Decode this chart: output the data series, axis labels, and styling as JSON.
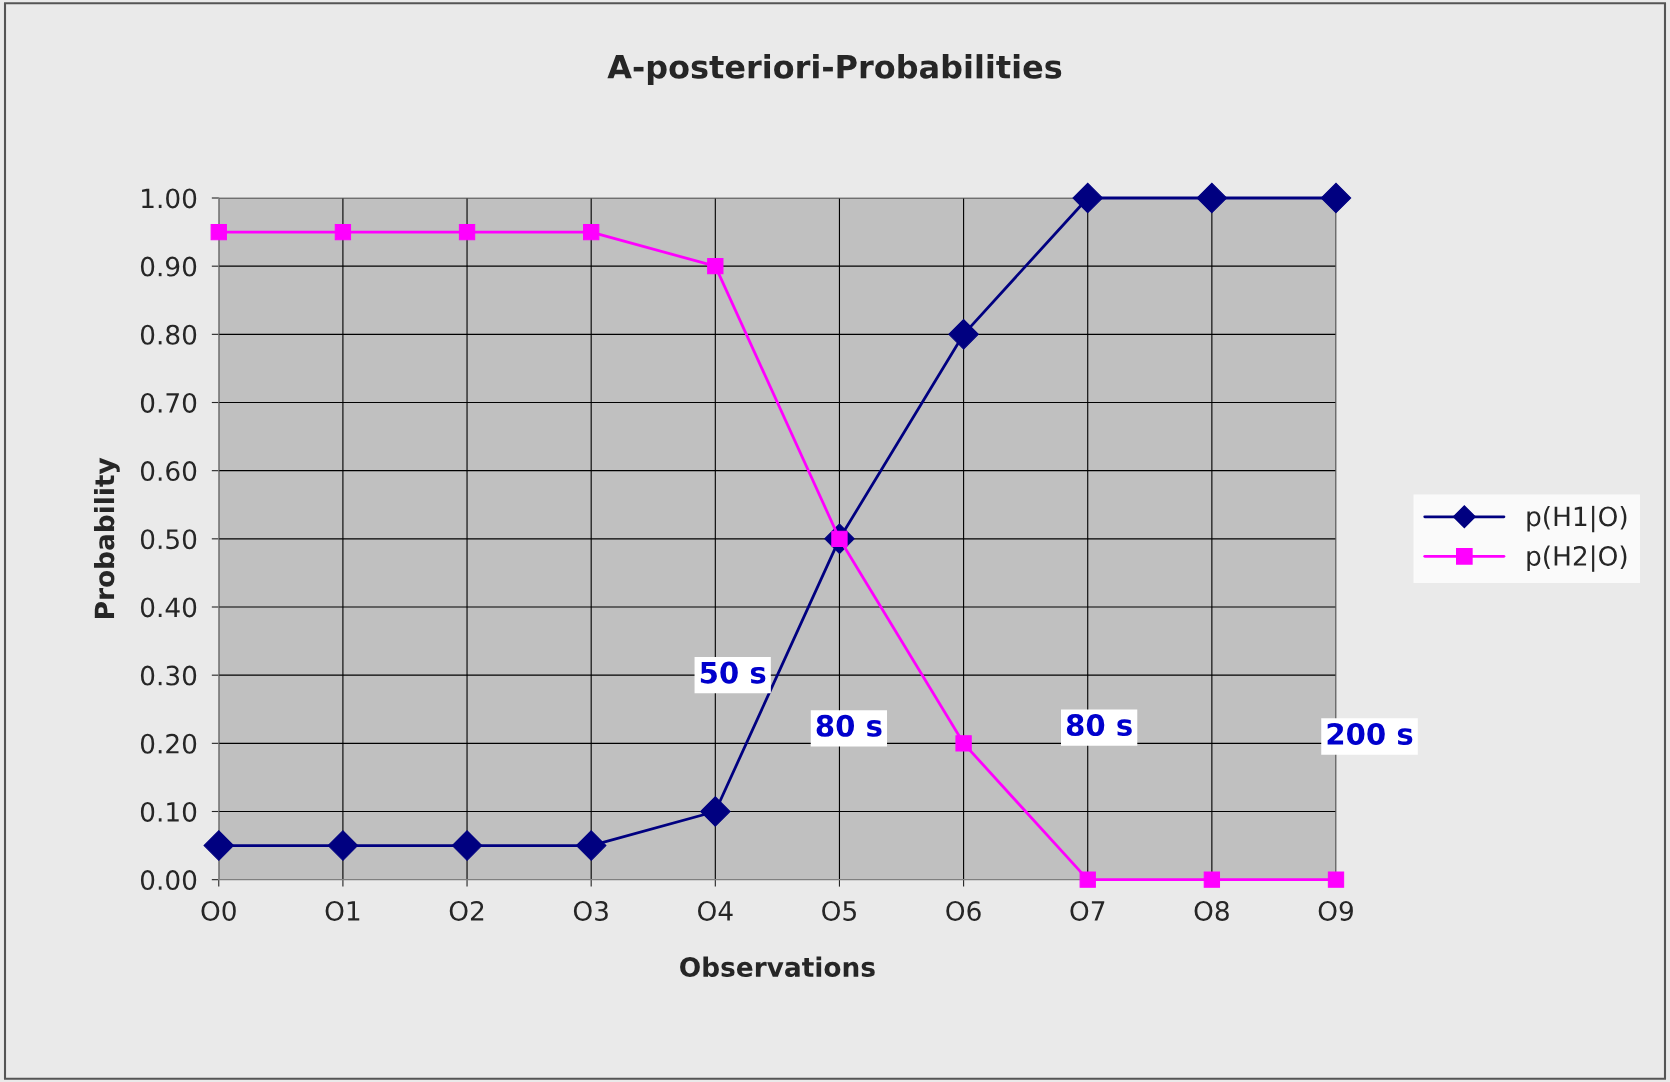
{
  "chart_data": {
    "type": "line",
    "title": "A-posteriori-Probabilities",
    "xlabel": "Observations",
    "ylabel": "Probability",
    "categories": [
      "O0",
      "O1",
      "O2",
      "O3",
      "O4",
      "O5",
      "O6",
      "O7",
      "O8",
      "O9"
    ],
    "series": [
      {
        "name": "p(H1|O)",
        "color": "#000080",
        "marker": "diamond",
        "values": [
          0.05,
          0.05,
          0.05,
          0.05,
          0.1,
          0.5,
          0.8,
          1.0,
          1.0,
          1.0
        ]
      },
      {
        "name": "p(H2|O)",
        "color": "#ff00ff",
        "marker": "square",
        "values": [
          0.95,
          0.95,
          0.95,
          0.95,
          0.9,
          0.5,
          0.2,
          0.0,
          0.0,
          0.0
        ]
      }
    ],
    "ylim": [
      0,
      1
    ],
    "yticks": [
      {
        "value": 0,
        "label": "0.00"
      },
      {
        "value": 0.1,
        "label": "0.10"
      },
      {
        "value": 0.2,
        "label": "0.20"
      },
      {
        "value": 0.3,
        "label": "0.30"
      },
      {
        "value": 0.4,
        "label": "0.40"
      },
      {
        "value": 0.5,
        "label": "0.50"
      },
      {
        "value": 0.6,
        "label": "0.60"
      },
      {
        "value": 0.7,
        "label": "0.70"
      },
      {
        "value": 0.8,
        "label": "0.80"
      },
      {
        "value": 0.9,
        "label": "0.90"
      },
      {
        "value": 1,
        "label": "1.00"
      }
    ],
    "grid": true,
    "legend": "right",
    "line_style": "solid",
    "annotations": [
      "50 s",
      "80 s",
      "80 s",
      "200 s"
    ]
  }
}
